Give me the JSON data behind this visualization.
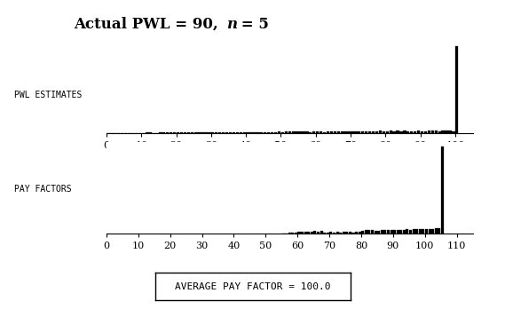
{
  "title_main": "Actual PWL = 90, ",
  "title_italic": "n",
  "title_end": " = 5",
  "pwl_label": "PWL ESTIMATES",
  "pf_label": "PAY FACTORS",
  "avg_label": "AVERAGE PAY FACTOR = 100.0",
  "pwl_xlim": [
    0,
    105
  ],
  "pwl_xticks": [
    0,
    10,
    20,
    30,
    40,
    50,
    60,
    70,
    80,
    90,
    100
  ],
  "pf_xlim": [
    0,
    115
  ],
  "pf_xticks": [
    0,
    10,
    20,
    30,
    40,
    50,
    60,
    70,
    80,
    90,
    100,
    110
  ],
  "bar_color": "#000000",
  "bg_color": "#ffffff",
  "tick_fontsize": 8,
  "label_fontsize": 7,
  "title_fontsize": 12
}
